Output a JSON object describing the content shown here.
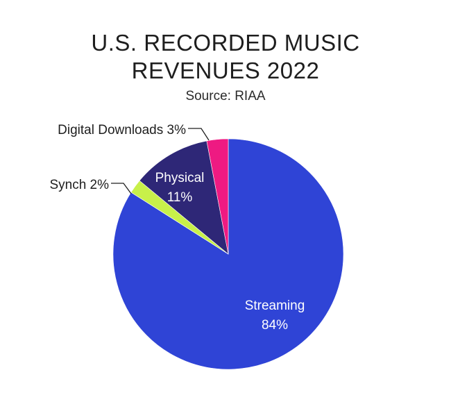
{
  "header": {
    "title_line1": "U.S. RECORDED MUSIC",
    "title_line2": "REVENUES 2022",
    "subtitle": "Source: RIAA"
  },
  "chart_data": {
    "type": "pie",
    "title": "U.S. RECORDED MUSIC REVENUES 2022",
    "subtitle": "Source: RIAA",
    "start_angle_deg": 0,
    "direction": "clockwise",
    "slices": [
      {
        "label": "Streaming",
        "value": 84,
        "value_label": "84%",
        "color": "#2f44d6",
        "label_placement": "inside"
      },
      {
        "label": "Synch",
        "value": 2,
        "value_label": "2%",
        "color": "#c8f04a",
        "label_placement": "outside-leader"
      },
      {
        "label": "Physical",
        "value": 11,
        "value_label": "11%",
        "color": "#2e2777",
        "label_placement": "inside"
      },
      {
        "label": "Digital Downloads",
        "value": 3,
        "value_label": "3%",
        "color": "#ee1a82",
        "label_placement": "outside-leader"
      }
    ]
  }
}
